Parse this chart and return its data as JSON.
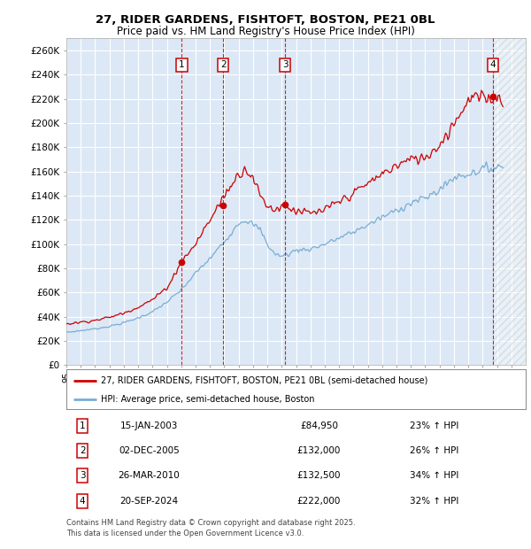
{
  "title_line1": "27, RIDER GARDENS, FISHTOFT, BOSTON, PE21 0BL",
  "title_line2": "Price paid vs. HM Land Registry's House Price Index (HPI)",
  "ylabel_vals": [
    0,
    20000,
    40000,
    60000,
    80000,
    100000,
    120000,
    140000,
    160000,
    180000,
    200000,
    220000,
    240000,
    260000
  ],
  "ylabel_labels": [
    "£0",
    "£20K",
    "£40K",
    "£60K",
    "£80K",
    "£100K",
    "£120K",
    "£140K",
    "£160K",
    "£180K",
    "£200K",
    "£220K",
    "£240K",
    "£260K"
  ],
  "x_start_year": 1995,
  "x_end_year": 2027,
  "hpi_color": "#7aadd4",
  "price_color": "#cc0000",
  "sale_dates": [
    "2003-01-15",
    "2005-12-02",
    "2010-03-26",
    "2024-09-20"
  ],
  "sale_prices": [
    84950,
    132000,
    132500,
    222000
  ],
  "sale_labels": [
    "1",
    "2",
    "3",
    "4"
  ],
  "legend_line1": "27, RIDER GARDENS, FISHTOFT, BOSTON, PE21 0BL (semi-detached house)",
  "legend_line2": "HPI: Average price, semi-detached house, Boston",
  "table_rows": [
    [
      "1",
      "15-JAN-2003",
      "£84,950",
      "23% ↑ HPI"
    ],
    [
      "2",
      "02-DEC-2005",
      "£132,000",
      "26% ↑ HPI"
    ],
    [
      "3",
      "26-MAR-2010",
      "£132,500",
      "34% ↑ HPI"
    ],
    [
      "4",
      "20-SEP-2024",
      "£222,000",
      "32% ↑ HPI"
    ]
  ],
  "footer": "Contains HM Land Registry data © Crown copyright and database right 2025.\nThis data is licensed under the Open Government Licence v3.0.",
  "bg_color": "#dce8f5",
  "grid_color": "#ffffff",
  "fig_bg": "#ffffff"
}
